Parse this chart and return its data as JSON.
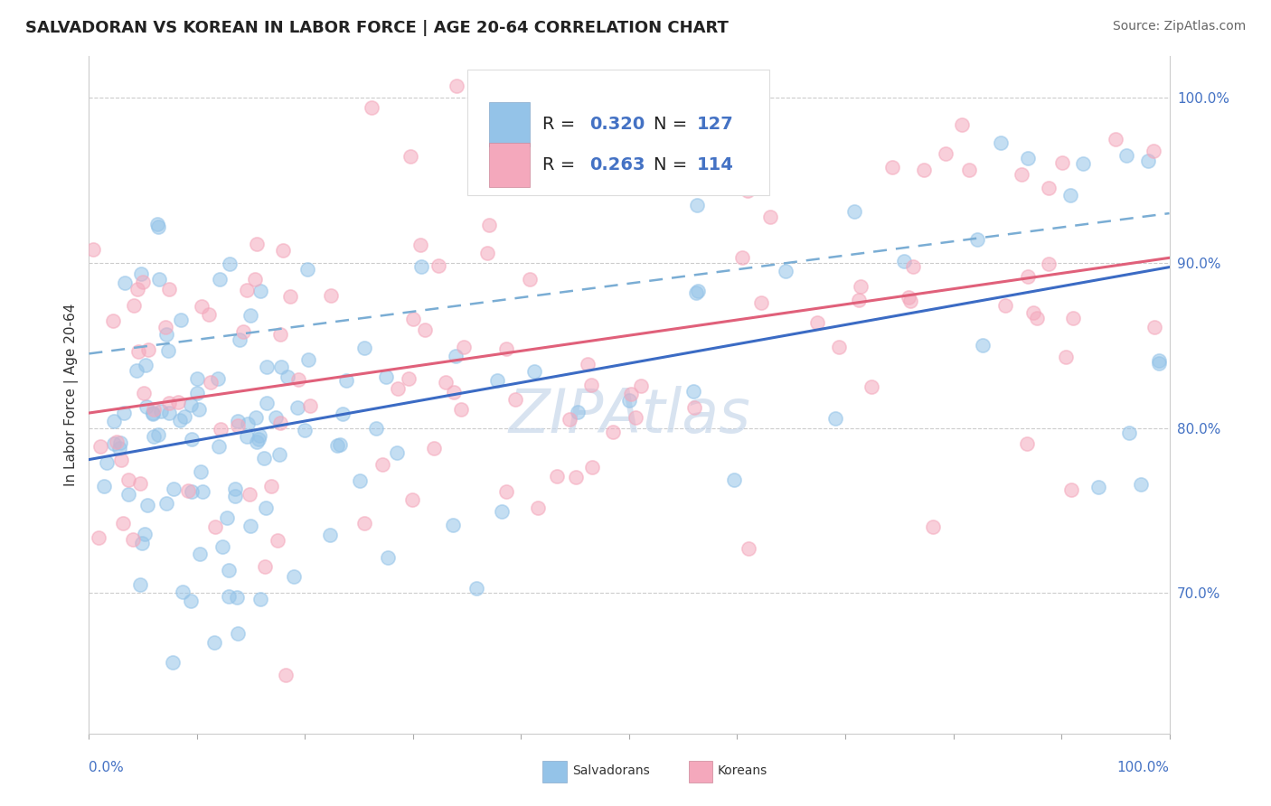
{
  "title": "SALVADORAN VS KOREAN IN LABOR FORCE | AGE 20-64 CORRELATION CHART",
  "source": "Source: ZipAtlas.com",
  "ylabel": "In Labor Force | Age 20-64",
  "ytick_values": [
    0.7,
    0.8,
    0.9,
    1.0
  ],
  "xlim": [
    0.0,
    1.0
  ],
  "ylim": [
    0.615,
    1.025
  ],
  "blue_color": "#94C3E8",
  "pink_color": "#F4A8BC",
  "trend_blue_solid_color": "#3B6BC4",
  "trend_blue_dashed_color": "#7AADD4",
  "trend_pink_color": "#E0607A",
  "watermark_color": "#C8D8EB",
  "title_fontsize": 13,
  "source_fontsize": 10,
  "axis_label_fontsize": 11,
  "tick_fontsize": 11,
  "legend_fontsize": 14,
  "marker_size": 120,
  "marker_alpha": 0.55
}
